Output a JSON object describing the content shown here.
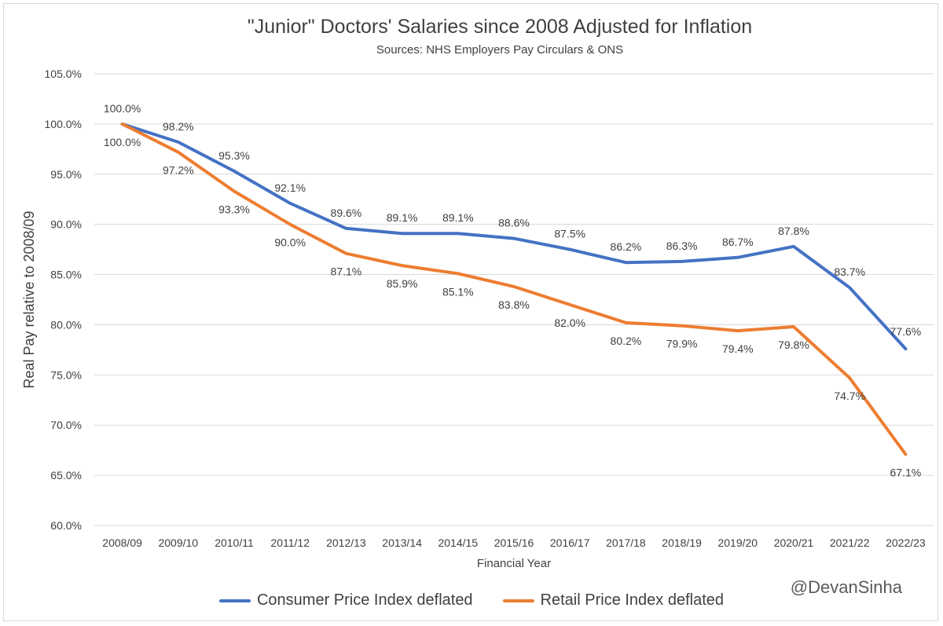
{
  "chart_data": {
    "type": "line",
    "title": "\"Junior\" Doctors' Salaries since 2008 Adjusted for Inflation",
    "subtitle": "Sources: NHS Employers Pay Circulars & ONS",
    "xlabel": "Financial Year",
    "ylabel": "Real Pay relative to 2008/09",
    "ylim": [
      60,
      105
    ],
    "yticks": [
      60,
      65,
      70,
      75,
      80,
      85,
      90,
      95,
      100,
      105
    ],
    "ytick_labels": [
      "60.0%",
      "65.0%",
      "70.0%",
      "75.0%",
      "80.0%",
      "85.0%",
      "90.0%",
      "95.0%",
      "100.0%",
      "105.0%"
    ],
    "grid": true,
    "legend_position": "bottom",
    "categories": [
      "2008/09",
      "2009/10",
      "2010/11",
      "2011/12",
      "2012/13",
      "2013/14",
      "2014/15",
      "2015/16",
      "2016/17",
      "2017/18",
      "2018/19",
      "2019/20",
      "2020/21",
      "2021/22",
      "2022/23"
    ],
    "series": [
      {
        "name": "Consumer Price Index deflated",
        "color": "#4472C4",
        "values": [
          100.0,
          98.2,
          95.3,
          92.1,
          89.6,
          89.1,
          89.1,
          88.6,
          87.5,
          86.2,
          86.3,
          86.7,
          87.8,
          83.7,
          77.6
        ],
        "labels": [
          "100.0%",
          "98.2%",
          "95.3%",
          "92.1%",
          "89.6%",
          "89.1%",
          "89.1%",
          "88.6%",
          "87.5%",
          "86.2%",
          "86.3%",
          "86.7%",
          "87.8%",
          "83.7%",
          "77.6%"
        ]
      },
      {
        "name": "Retail Price Index deflated",
        "color": "#ED7D31",
        "values": [
          100.0,
          97.2,
          93.3,
          90.0,
          87.1,
          85.9,
          85.1,
          83.8,
          82.0,
          80.2,
          79.9,
          79.4,
          79.8,
          74.7,
          67.1
        ],
        "labels": [
          "100.0%",
          "97.2%",
          "93.3%",
          "90.0%",
          "87.1%",
          "85.9%",
          "85.1%",
          "83.8%",
          "82.0%",
          "80.2%",
          "79.9%",
          "79.4%",
          "79.8%",
          "74.7%",
          "67.1%"
        ]
      }
    ]
  },
  "watermark": "@DevanSinha"
}
